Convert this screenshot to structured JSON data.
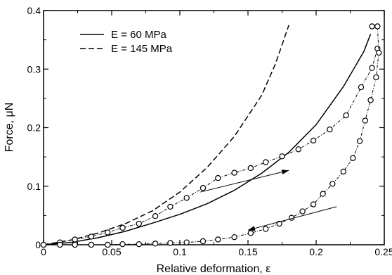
{
  "chart_data": {
    "type": "line",
    "title": "",
    "xlabel": "Relative deformation, ε",
    "ylabel": "Force, μN",
    "xlim": [
      0,
      0.25
    ],
    "ylim": [
      0,
      0.4
    ],
    "xticks": [
      0,
      0.05,
      0.1,
      0.15,
      0.2,
      0.25
    ],
    "xtick_labels": [
      "0",
      "0.05",
      "0.1",
      "0.15",
      "0.2",
      "0.25"
    ],
    "yticks": [
      0,
      0.1,
      0.2,
      0.3,
      0.4
    ],
    "ytick_labels": [
      "0",
      "0.1",
      "0.2",
      "0.3",
      "0.4"
    ],
    "grid": false,
    "legend_position": "top-left",
    "legend": [
      {
        "label": "E = 60 MPa",
        "style": "solid"
      },
      {
        "label": "E = 145 MPa",
        "style": "dashed"
      }
    ],
    "series": [
      {
        "name": "E = 60 MPa",
        "style": "solid",
        "x": [
          0,
          0.02,
          0.04,
          0.06,
          0.08,
          0.1,
          0.12,
          0.14,
          0.16,
          0.18,
          0.2,
          0.22,
          0.235,
          0.24
        ],
        "y": [
          0,
          0.004,
          0.012,
          0.023,
          0.037,
          0.052,
          0.07,
          0.093,
          0.122,
          0.158,
          0.205,
          0.27,
          0.33,
          0.36
        ]
      },
      {
        "name": "E = 145 MPa",
        "style": "dashed",
        "x": [
          0,
          0.02,
          0.04,
          0.06,
          0.08,
          0.1,
          0.12,
          0.14,
          0.16,
          0.17,
          0.18
        ],
        "y": [
          0,
          0.008,
          0.02,
          0.036,
          0.058,
          0.09,
          0.132,
          0.185,
          0.255,
          0.308,
          0.375
        ]
      },
      {
        "name": "",
        "style": "dash-dot-circles",
        "x": [
          0,
          0.012,
          0.023,
          0.035,
          0.047,
          0.058,
          0.07,
          0.082,
          0.093,
          0.105,
          0.117,
          0.128,
          0.14,
          0.152,
          0.163,
          0.175,
          0.187,
          0.198,
          0.21,
          0.222,
          0.233,
          0.241,
          0.245
        ],
        "y": [
          0,
          0.004,
          0.009,
          0.014,
          0.021,
          0.029,
          0.036,
          0.049,
          0.065,
          0.08,
          0.097,
          0.114,
          0.123,
          0.131,
          0.141,
          0.151,
          0.163,
          0.178,
          0.197,
          0.221,
          0.269,
          0.302,
          0.335
        ]
      },
      {
        "name": "",
        "style": "dash-dot-circles",
        "x": [
          0.241,
          0.245,
          0.246,
          0.244,
          0.24,
          0.236,
          0.232,
          0.227,
          0.22,
          0.212,
          0.205,
          0.198,
          0.19,
          0.182,
          0.173,
          0.163,
          0.152,
          0.14,
          0.128,
          0.117,
          0.105,
          0.093,
          0.082,
          0.07,
          0.058,
          0.047,
          0.035,
          0.023,
          0.012
        ],
        "y": [
          0.373,
          0.373,
          0.328,
          0.286,
          0.247,
          0.212,
          0.177,
          0.148,
          0.125,
          0.104,
          0.087,
          0.069,
          0.057,
          0.046,
          0.036,
          0.027,
          0.02,
          0.013,
          0.009,
          0.006,
          0.004,
          0.003,
          0.002,
          0.001,
          0.001,
          0.0,
          0.0,
          0.0,
          0.0
        ]
      }
    ],
    "annotations": [
      {
        "type": "arrow",
        "direction": "right-up",
        "from": [
          0.115,
          0.09
        ],
        "to": [
          0.18,
          0.127
        ]
      },
      {
        "type": "arrow",
        "direction": "left-down",
        "from": [
          0.215,
          0.065
        ],
        "to": [
          0.15,
          0.025
        ]
      }
    ]
  }
}
